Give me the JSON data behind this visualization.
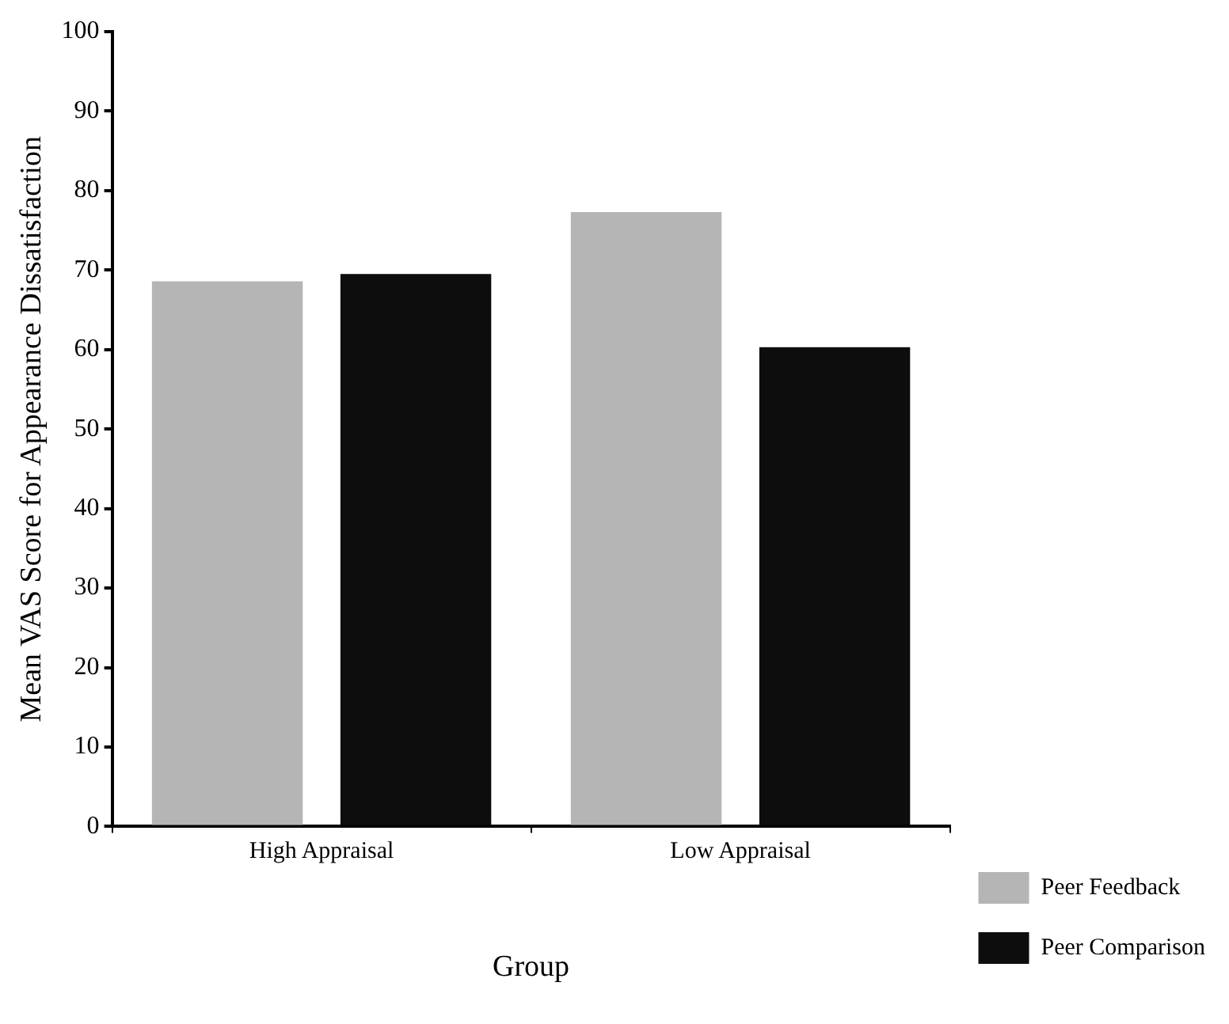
{
  "chart_data": {
    "type": "bar",
    "xlabel": "Group",
    "ylabel": "Mean VAS Score for Appearance Dissatisfaction",
    "categories": [
      "High Appraisal",
      "Low Appraisal"
    ],
    "series": [
      {
        "name": "Peer Feedback",
        "color": "#b5b5b5",
        "values": [
          68.6,
          77.3
        ]
      },
      {
        "name": "Peer Comparison",
        "color": "#0d0d0d",
        "values": [
          69.5,
          60.3
        ]
      }
    ],
    "ylim": [
      0,
      100
    ],
    "yticks": [
      0,
      10,
      20,
      30,
      40,
      50,
      60,
      70,
      80,
      90,
      100
    ],
    "grid": false,
    "legend": "bottom right"
  }
}
